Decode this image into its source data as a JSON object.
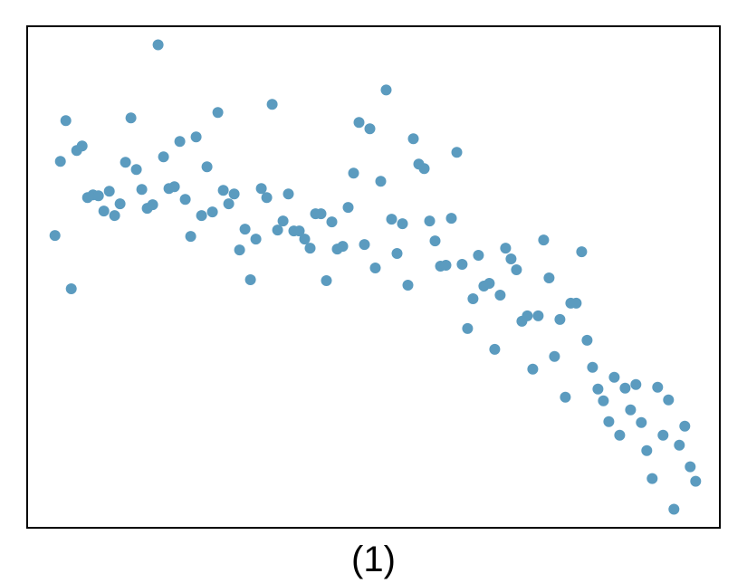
{
  "caption": "(1)",
  "colors": {
    "point": "#5b9bbf",
    "frame": "#000000",
    "background": "#ffffff"
  },
  "chart_data": {
    "type": "scatter",
    "title": "",
    "xlabel": "",
    "ylabel": "",
    "axis_ticks_shown": false,
    "grid": false,
    "xlim": [
      -2.7,
      762.7
    ],
    "ylim": [
      -554.5,
      0.5
    ],
    "series": [
      {
        "values": [
          [
            28,
            -231
          ],
          [
            34,
            -149
          ],
          [
            40,
            -104
          ],
          [
            46,
            -290
          ],
          [
            52,
            -137
          ],
          [
            58,
            -132
          ],
          [
            64,
            -189
          ],
          [
            70,
            -186
          ],
          [
            76,
            -187
          ],
          [
            82,
            -204
          ],
          [
            88,
            -182
          ],
          [
            94,
            -209
          ],
          [
            100,
            -196
          ],
          [
            106,
            -150
          ],
          [
            112,
            -101
          ],
          [
            118,
            -158
          ],
          [
            124,
            -180
          ],
          [
            130,
            -201
          ],
          [
            136,
            -197
          ],
          [
            142,
            -20
          ],
          [
            148,
            -144
          ],
          [
            154,
            -179
          ],
          [
            160,
            -177
          ],
          [
            166,
            -127
          ],
          [
            172,
            -191
          ],
          [
            178,
            -232
          ],
          [
            184,
            -122
          ],
          [
            190,
            -209
          ],
          [
            196,
            -155
          ],
          [
            202,
            -205
          ],
          [
            208,
            -95
          ],
          [
            214,
            -181
          ],
          [
            220,
            -196
          ],
          [
            226,
            -185
          ],
          [
            232,
            -247
          ],
          [
            238,
            -224
          ],
          [
            244,
            -280
          ],
          [
            250,
            -235
          ],
          [
            256,
            -179
          ],
          [
            262,
            -189
          ],
          [
            268,
            -86
          ],
          [
            274,
            -225
          ],
          [
            280,
            -215
          ],
          [
            286,
            -185
          ],
          [
            292,
            -226
          ],
          [
            298,
            -226
          ],
          [
            304,
            -235
          ],
          [
            310,
            -245
          ],
          [
            316,
            -207
          ],
          [
            322,
            -207
          ],
          [
            328,
            -281
          ],
          [
            334,
            -216
          ],
          [
            340,
            -246
          ],
          [
            346,
            -243
          ],
          [
            352,
            -200
          ],
          [
            358,
            -162
          ],
          [
            364,
            -106
          ],
          [
            370,
            -241
          ],
          [
            376,
            -113
          ],
          [
            382,
            -267
          ],
          [
            388,
            -171
          ],
          [
            394,
            -70
          ],
          [
            400,
            -213
          ],
          [
            406,
            -251
          ],
          [
            412,
            -218
          ],
          [
            418,
            -286
          ],
          [
            424,
            -124
          ],
          [
            430,
            -152
          ],
          [
            436,
            -157
          ],
          [
            442,
            -215
          ],
          [
            448,
            -237
          ],
          [
            454,
            -265
          ],
          [
            460,
            -264
          ],
          [
            466,
            -212
          ],
          [
            472,
            -139
          ],
          [
            478,
            -263
          ],
          [
            484,
            -334
          ],
          [
            490,
            -301
          ],
          [
            496,
            -253
          ],
          [
            502,
            -287
          ],
          [
            508,
            -284
          ],
          [
            514,
            -357
          ],
          [
            520,
            -297
          ],
          [
            526,
            -245
          ],
          [
            532,
            -257
          ],
          [
            538,
            -269
          ],
          [
            544,
            -326
          ],
          [
            550,
            -320
          ],
          [
            556,
            -379
          ],
          [
            562,
            -320
          ],
          [
            568,
            -236
          ],
          [
            574,
            -278
          ],
          [
            580,
            -365
          ],
          [
            586,
            -324
          ],
          [
            592,
            -410
          ],
          [
            598,
            -306
          ],
          [
            604,
            -306
          ],
          [
            610,
            -249
          ],
          [
            616,
            -347
          ],
          [
            622,
            -377
          ],
          [
            628,
            -401
          ],
          [
            634,
            -414
          ],
          [
            640,
            -437
          ],
          [
            646,
            -388
          ],
          [
            652,
            -452
          ],
          [
            658,
            -400
          ],
          [
            664,
            -424
          ],
          [
            670,
            -396
          ],
          [
            676,
            -438
          ],
          [
            682,
            -469
          ],
          [
            688,
            -500
          ],
          [
            694,
            -399
          ],
          [
            700,
            -452
          ],
          [
            706,
            -413
          ],
          [
            712,
            -534
          ],
          [
            718,
            -463
          ],
          [
            724,
            -442
          ],
          [
            730,
            -487
          ],
          [
            736,
            -503
          ]
        ]
      }
    ]
  }
}
